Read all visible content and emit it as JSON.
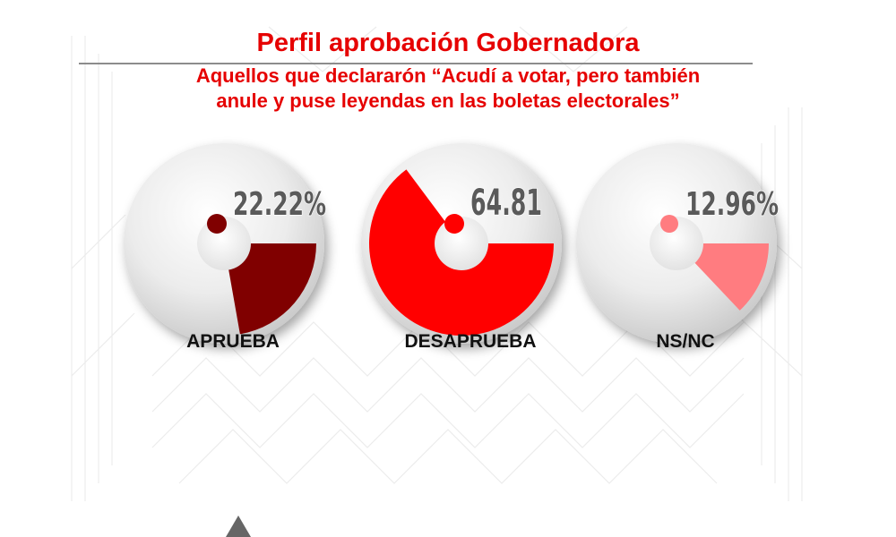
{
  "header": {
    "title": "Perfil aprobación Gobernadora",
    "subtitle_line1": "Aquellos que declararón “Acudí a votar, pero también",
    "subtitle_line2": "anule y puse leyendas en las boletas electorales”"
  },
  "colors": {
    "title": "#e60000",
    "disc_light": "#ffffff",
    "disc_dark": "#c4c4c4"
  },
  "logo_icon": "diamond-logo-icon",
  "chart_data": {
    "type": "pie",
    "title": "Perfil aprobación Gobernadora",
    "slices": [
      {
        "name": "APRUEBA",
        "value": 22.22,
        "label": "22.22%",
        "color": "#800000"
      },
      {
        "name": "DESAPRUEBA",
        "value": 64.81,
        "label": "64.81",
        "color": "#ff0000"
      },
      {
        "name": "NS/NC",
        "value": 12.96,
        "label": "12.96%",
        "color": "#ff7c80"
      }
    ]
  }
}
